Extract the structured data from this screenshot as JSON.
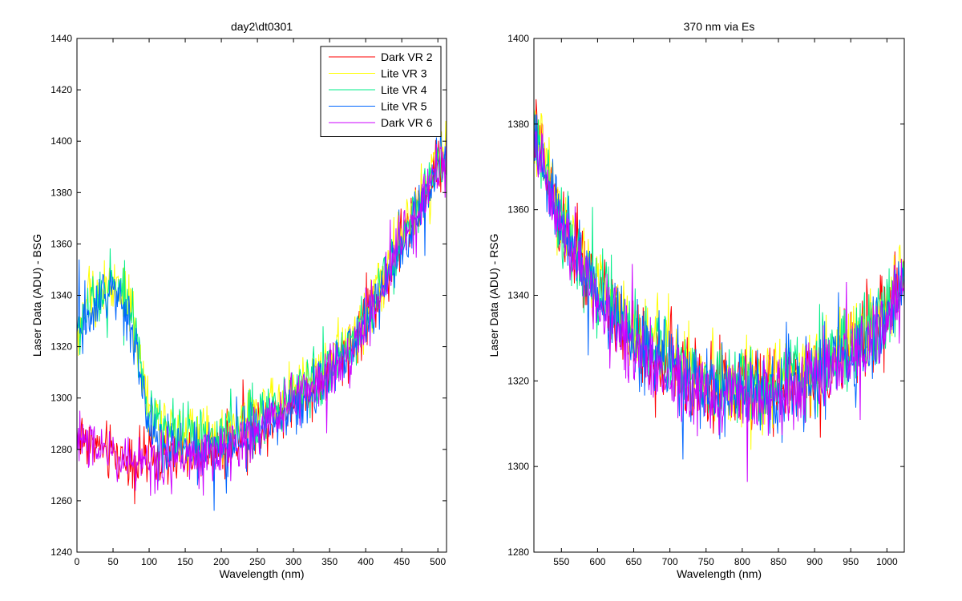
{
  "chart_data": [
    {
      "type": "line",
      "title": "day2\\dt0301",
      "xlabel": "Wavelength (nm)",
      "ylabel": "Laser Data (ADU) - BSG",
      "xlim": [
        0,
        512
      ],
      "ylim": [
        1240,
        1440
      ],
      "xticks": [
        0,
        50,
        100,
        150,
        200,
        250,
        300,
        350,
        400,
        450,
        500
      ],
      "yticks": [
        1240,
        1260,
        1280,
        1300,
        1320,
        1340,
        1360,
        1380,
        1400,
        1420,
        1440
      ],
      "grid": false,
      "legend": "top-right",
      "series": [
        {
          "name": "Dark VR 2",
          "color": "#ff0000",
          "x": [
            0,
            10,
            20,
            40,
            60,
            80,
            100,
            120,
            140,
            160,
            180,
            200,
            220,
            240,
            260,
            280,
            300,
            320,
            340,
            360,
            380,
            400,
            420,
            440,
            460,
            480,
            500,
            512
          ],
          "y": [
            1285,
            1285,
            1283,
            1279,
            1277,
            1276,
            1276,
            1276,
            1276,
            1277,
            1278,
            1280,
            1283,
            1287,
            1291,
            1295,
            1299,
            1303,
            1308,
            1313,
            1320,
            1330,
            1342,
            1355,
            1368,
            1378,
            1390,
            1395
          ]
        },
        {
          "name": "Lite VR 3",
          "color": "#ffff00",
          "x": [
            0,
            10,
            20,
            30,
            60,
            80,
            100,
            120,
            140,
            160,
            180,
            200,
            220,
            240,
            260,
            280,
            300,
            320,
            340,
            360,
            380,
            400,
            420,
            440,
            460,
            480,
            500,
            512
          ],
          "y": [
            1325,
            1333,
            1340,
            1342,
            1345,
            1328,
            1295,
            1289,
            1288,
            1287,
            1287,
            1288,
            1290,
            1293,
            1296,
            1299,
            1303,
            1307,
            1311,
            1316,
            1323,
            1332,
            1344,
            1357,
            1370,
            1380,
            1392,
            1398
          ]
        },
        {
          "name": "Lite VR 4",
          "color": "#00ee88",
          "x": [
            0,
            10,
            20,
            30,
            60,
            80,
            100,
            120,
            140,
            160,
            180,
            200,
            220,
            240,
            260,
            280,
            300,
            320,
            340,
            360,
            380,
            400,
            420,
            440,
            460,
            480,
            500,
            512
          ],
          "y": [
            1324,
            1332,
            1339,
            1341,
            1344,
            1327,
            1293,
            1287,
            1286,
            1285,
            1285,
            1286,
            1288,
            1291,
            1294,
            1297,
            1301,
            1305,
            1309,
            1314,
            1321,
            1330,
            1342,
            1355,
            1368,
            1378,
            1390,
            1396
          ]
        },
        {
          "name": "Lite VR 5",
          "color": "#0066ff",
          "x": [
            0,
            10,
            20,
            30,
            60,
            80,
            100,
            120,
            140,
            160,
            180,
            200,
            220,
            240,
            260,
            280,
            300,
            320,
            340,
            360,
            380,
            400,
            420,
            440,
            460,
            480,
            500,
            512
          ],
          "y": [
            1322,
            1330,
            1337,
            1338,
            1341,
            1323,
            1287,
            1281,
            1280,
            1279,
            1279,
            1280,
            1283,
            1286,
            1290,
            1293,
            1297,
            1301,
            1306,
            1311,
            1318,
            1328,
            1340,
            1353,
            1366,
            1376,
            1388,
            1394
          ]
        },
        {
          "name": "Dark VR 6",
          "color": "#cc00ff",
          "x": [
            0,
            10,
            20,
            40,
            60,
            80,
            100,
            120,
            140,
            160,
            180,
            200,
            220,
            240,
            260,
            280,
            300,
            320,
            340,
            360,
            380,
            400,
            420,
            440,
            460,
            480,
            500,
            512
          ],
          "y": [
            1284,
            1284,
            1282,
            1278,
            1276,
            1275,
            1275,
            1275,
            1275,
            1276,
            1277,
            1279,
            1282,
            1286,
            1290,
            1294,
            1298,
            1302,
            1307,
            1312,
            1319,
            1329,
            1341,
            1354,
            1367,
            1377,
            1389,
            1394
          ]
        }
      ]
    },
    {
      "type": "line",
      "title": "370 nm via Es",
      "xlabel": "Wavelength (nm)",
      "ylabel": "Laser Data (ADU) - RSG",
      "xlim": [
        512,
        1024
      ],
      "ylim": [
        1280,
        1400
      ],
      "xticks": [
        550,
        600,
        650,
        700,
        750,
        800,
        850,
        900,
        950,
        1000
      ],
      "yticks": [
        1280,
        1300,
        1320,
        1340,
        1360,
        1380,
        1400
      ],
      "grid": false,
      "series": [
        {
          "name": "Dark VR 2",
          "color": "#ff0000",
          "x": [
            512,
            530,
            550,
            575,
            600,
            625,
            650,
            675,
            700,
            725,
            750,
            775,
            800,
            825,
            850,
            875,
            900,
            925,
            950,
            975,
            1000,
            1024
          ],
          "y": [
            1378,
            1368,
            1356,
            1348,
            1341,
            1335,
            1330,
            1327,
            1324,
            1321,
            1319,
            1318,
            1318,
            1318,
            1319,
            1320,
            1322,
            1324,
            1327,
            1331,
            1336,
            1343
          ]
        },
        {
          "name": "Lite VR 3",
          "color": "#ffff00",
          "x": [
            512,
            530,
            550,
            575,
            600,
            625,
            650,
            675,
            700,
            725,
            750,
            775,
            800,
            825,
            850,
            875,
            900,
            925,
            950,
            975,
            1000,
            1024
          ],
          "y": [
            1380,
            1370,
            1358,
            1350,
            1343,
            1337,
            1332,
            1329,
            1326,
            1323,
            1321,
            1320,
            1320,
            1320,
            1321,
            1322,
            1324,
            1326,
            1329,
            1333,
            1338,
            1345
          ]
        },
        {
          "name": "Lite VR 4",
          "color": "#00ee88",
          "x": [
            512,
            530,
            550,
            575,
            600,
            625,
            650,
            675,
            700,
            725,
            750,
            775,
            800,
            825,
            850,
            875,
            900,
            925,
            950,
            975,
            1000,
            1024
          ],
          "y": [
            1379,
            1369,
            1357,
            1349,
            1342,
            1336,
            1331,
            1328,
            1325,
            1322,
            1320,
            1319,
            1319,
            1319,
            1320,
            1321,
            1323,
            1325,
            1328,
            1332,
            1337,
            1344
          ]
        },
        {
          "name": "Lite VR 5",
          "color": "#0066ff",
          "x": [
            512,
            530,
            550,
            575,
            600,
            625,
            650,
            675,
            700,
            725,
            750,
            775,
            800,
            825,
            850,
            875,
            900,
            925,
            950,
            975,
            1000,
            1024
          ],
          "y": [
            1377,
            1367,
            1355,
            1347,
            1340,
            1334,
            1329,
            1326,
            1323,
            1320,
            1318,
            1317,
            1317,
            1317,
            1318,
            1319,
            1321,
            1323,
            1326,
            1330,
            1335,
            1342
          ]
        },
        {
          "name": "Dark VR 6",
          "color": "#cc00ff",
          "x": [
            512,
            530,
            550,
            575,
            600,
            625,
            650,
            675,
            700,
            725,
            750,
            775,
            800,
            825,
            850,
            875,
            900,
            925,
            950,
            975,
            1000,
            1024
          ],
          "y": [
            1376,
            1366,
            1354,
            1346,
            1339,
            1333,
            1328,
            1325,
            1322,
            1319,
            1317,
            1316,
            1316,
            1316,
            1317,
            1318,
            1320,
            1322,
            1325,
            1329,
            1334,
            1341
          ]
        }
      ]
    }
  ]
}
